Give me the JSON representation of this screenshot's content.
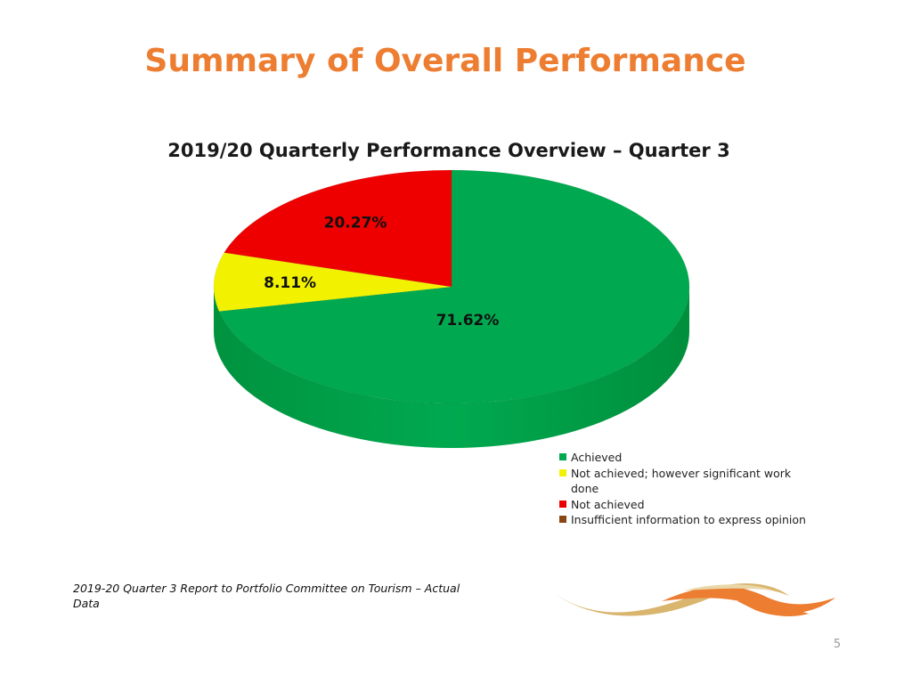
{
  "slide": {
    "title": "Summary of Overall Performance",
    "caption": "2019-20 Quarter 3 Report to Portfolio Committee on Tourism  – Actual Data",
    "page_number": "5"
  },
  "colors": {
    "title": "#ED7D31",
    "achieved": "#00A94F",
    "significant_work": "#F2F200",
    "not_achieved": "#EE0000",
    "insufficient": "#8B4513"
  },
  "chart_data": {
    "type": "pie",
    "title": "2019/20 Quarterly Performance Overview – Quarter 3",
    "style": "3d",
    "legend_position": "bottom-right",
    "series": [
      {
        "name": "Achieved",
        "value": 71.62,
        "label": "71.62%",
        "color": "#00A94F"
      },
      {
        "name": "Not achieved; however significant work done",
        "value": 8.11,
        "label": "8.11%",
        "color": "#F2F200"
      },
      {
        "name": "Not achieved",
        "value": 20.27,
        "label": "20.27%",
        "color": "#EE0000"
      },
      {
        "name": "Insufficient information to express opinion",
        "value": 0,
        "label": "",
        "color": "#8B4513"
      }
    ]
  }
}
